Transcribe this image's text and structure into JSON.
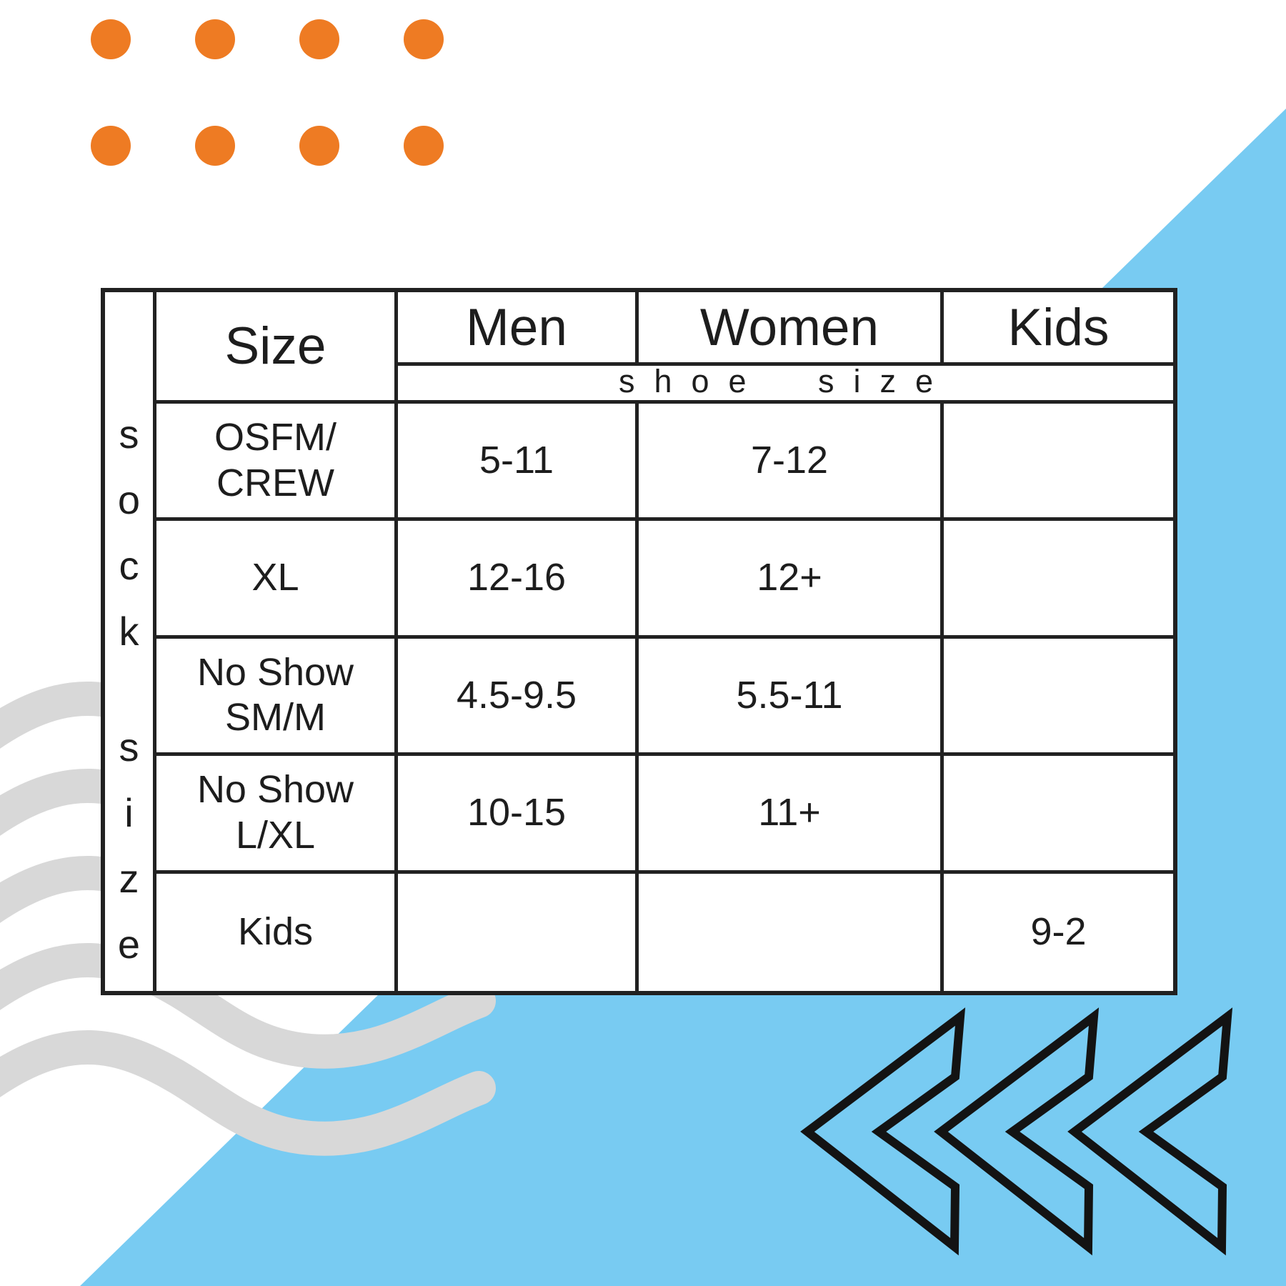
{
  "title": "sock size chart infographic",
  "decor": {
    "orange_dot_color": "#EE7B23",
    "blue_triangle_color": "#78CBF2",
    "wave_color": "#D8D8D8",
    "chevron_color": "#131313",
    "table_line_color": "#212121",
    "dot_grid": {
      "rows": 2,
      "cols": 4
    },
    "chevron_count": 3
  },
  "table": {
    "side_label": "sock size",
    "band_label": "shoe size",
    "headers": {
      "size": "Size",
      "men": "Men",
      "women": "Women",
      "kids": "Kids"
    },
    "rows": [
      {
        "label": "OSFM/\nCREW",
        "men": "5-11",
        "women": "7-12",
        "kids": ""
      },
      {
        "label": "XL",
        "men": "12-16",
        "women": "12+",
        "kids": ""
      },
      {
        "label": "No Show\nSM/M",
        "men": "4.5-9.5",
        "women": "5.5-11",
        "kids": ""
      },
      {
        "label": "No Show\nL/XL",
        "men": "10-15",
        "women": "11+",
        "kids": ""
      },
      {
        "label": "Kids",
        "men": "",
        "women": "",
        "kids": "9-2"
      }
    ]
  },
  "chart_data": {
    "type": "table",
    "title": "sock size to shoe size conversion",
    "row_axis_label": "sock size",
    "value_axis_label": "shoe size",
    "columns": [
      "Size",
      "Men",
      "Women",
      "Kids"
    ],
    "rows": [
      [
        "OSFM/CREW",
        "5-11",
        "7-12",
        ""
      ],
      [
        "XL",
        "12-16",
        "12+",
        ""
      ],
      [
        "No Show SM/M",
        "4.5-9.5",
        "5.5-11",
        ""
      ],
      [
        "No Show L/XL",
        "10-15",
        "11+",
        ""
      ],
      [
        "Kids",
        "",
        "",
        "9-2"
      ]
    ]
  }
}
